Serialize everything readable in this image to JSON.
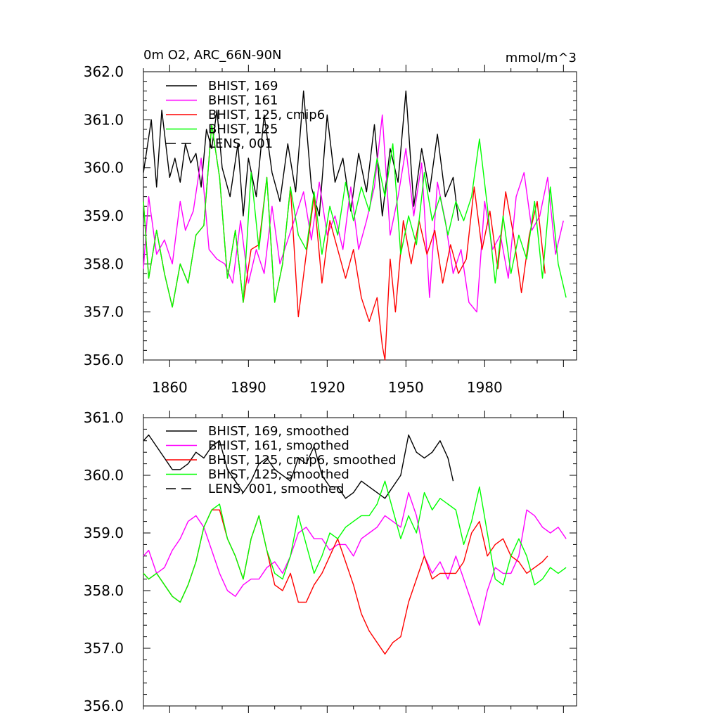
{
  "chart_data": [
    {
      "type": "line",
      "title": "0m O2, ARC_66N-90N",
      "units": "mmol/m^3",
      "xlabel": "",
      "ylabel": "",
      "xlim": [
        1850,
        2015
      ],
      "ylim": [
        356.0,
        362.0
      ],
      "xticks": [
        1860,
        1890,
        1920,
        1950,
        1980
      ],
      "xtick_labels": [
        "1860",
        "1890",
        "1920",
        "1950",
        "1980"
      ],
      "yticks": [
        356.0,
        357.0,
        358.0,
        359.0,
        360.0,
        361.0,
        362.0
      ],
      "ytick_labels": [
        "356.0",
        "357.0",
        "358.0",
        "359.0",
        "360.0",
        "361.0",
        "362.0"
      ],
      "legend": "top-left",
      "series": [
        {
          "name": "BHIST, 169",
          "label": "BHIST, 169",
          "color": "#000000",
          "dash": "solid",
          "x": [
            1850,
            1853,
            1855,
            1857,
            1860,
            1862,
            1864,
            1866,
            1868,
            1870,
            1872,
            1874,
            1876,
            1878,
            1880,
            1883,
            1886,
            1888,
            1890,
            1893,
            1896,
            1899,
            1902,
            1905,
            1908,
            1911,
            1914,
            1917,
            1920,
            1923,
            1926,
            1929,
            1932,
            1935,
            1938,
            1941,
            1944,
            1947,
            1950,
            1953,
            1956,
            1959,
            1962,
            1965,
            1968,
            1970
          ],
          "values": [
            359.9,
            361.0,
            359.6,
            361.2,
            359.8,
            360.2,
            359.7,
            360.5,
            360.1,
            360.3,
            359.6,
            360.8,
            360.4,
            361.2,
            360.0,
            359.4,
            360.5,
            359.0,
            360.2,
            359.4,
            361.1,
            359.9,
            359.3,
            360.5,
            359.5,
            361.6,
            359.6,
            359.0,
            361.1,
            359.7,
            360.2,
            359.1,
            360.3,
            359.5,
            360.9,
            359.0,
            360.4,
            359.7,
            361.6,
            359.2,
            360.4,
            359.5,
            360.7,
            359.4,
            359.8,
            358.9
          ]
        },
        {
          "name": "BHIST, 161",
          "label": "BHIST, 161",
          "color": "#ff00ff",
          "dash": "solid",
          "x": [
            1850,
            1852,
            1855,
            1858,
            1861,
            1864,
            1866,
            1869,
            1872,
            1875,
            1878,
            1881,
            1884,
            1887,
            1890,
            1893,
            1896,
            1899,
            1902,
            1905,
            1908,
            1911,
            1914,
            1917,
            1920,
            1923,
            1926,
            1929,
            1932,
            1935,
            1938,
            1941,
            1944,
            1947,
            1950,
            1953,
            1956,
            1959,
            1962,
            1965,
            1968,
            1971,
            1974,
            1977,
            1980,
            1983,
            1986,
            1989,
            1992,
            1995,
            1998,
            2001,
            2004,
            2007,
            2010
          ],
          "values": [
            357.9,
            359.4,
            358.2,
            358.5,
            358.0,
            359.3,
            358.7,
            359.1,
            360.2,
            358.3,
            358.1,
            358.0,
            357.6,
            358.9,
            357.6,
            358.3,
            357.8,
            359.2,
            358.0,
            358.5,
            359.0,
            359.5,
            358.5,
            359.7,
            358.6,
            359.0,
            358.3,
            359.6,
            358.3,
            358.9,
            359.6,
            361.1,
            358.6,
            359.4,
            360.4,
            359.0,
            360.1,
            357.3,
            359.7,
            358.9,
            357.8,
            358.3,
            357.2,
            357.0,
            359.3,
            358.3,
            358.6,
            357.7,
            359.4,
            359.9,
            358.7,
            359.0,
            359.8,
            358.2,
            358.9
          ]
        },
        {
          "name": "BHIST, 125, cmip6",
          "label": "BHIST, 125, cmip6",
          "color": "#ff0000",
          "dash": "solid",
          "x": [
            1850,
            1852,
            1855,
            1858,
            1861,
            1864,
            1867,
            1870,
            1873,
            1876,
            1879,
            1882,
            1885,
            1888,
            1891,
            1894,
            1897,
            1900,
            1903,
            1906,
            1909,
            1912,
            1915,
            1918,
            1921,
            1924,
            1927,
            1930,
            1933,
            1936,
            1939,
            1941,
            1942,
            1944,
            1946,
            1949,
            1952,
            1955,
            1958,
            1961,
            1964,
            1967,
            1970,
            1973,
            1976,
            1979,
            1982,
            1985,
            1988,
            1991,
            1994,
            1997,
            2000,
            2003
          ],
          "values": [
            359.3,
            357.7,
            358.7,
            357.8,
            357.1,
            358.0,
            357.6,
            358.6,
            358.8,
            360.9,
            359.8,
            357.7,
            358.7,
            357.2,
            358.3,
            358.4,
            359.8,
            357.2,
            358.0,
            359.6,
            356.9,
            358.2,
            359.4,
            357.6,
            358.9,
            358.3,
            357.7,
            358.3,
            357.3,
            356.8,
            357.3,
            356.3,
            356.0,
            358.1,
            357.0,
            358.9,
            358.0,
            358.9,
            358.2,
            358.7,
            357.6,
            358.4,
            357.8,
            358.1,
            359.6,
            358.3,
            359.1,
            357.9,
            359.5,
            358.6,
            357.4,
            358.6,
            359.3,
            357.8
          ]
        },
        {
          "name": "BHIST, 125",
          "label": "BHIST, 125",
          "color": "#00ff00",
          "dash": "solid",
          "x": [
            1850,
            1852,
            1855,
            1858,
            1861,
            1864,
            1867,
            1870,
            1873,
            1876,
            1879,
            1882,
            1885,
            1888,
            1891,
            1894,
            1897,
            1900,
            1903,
            1906,
            1909,
            1912,
            1915,
            1918,
            1921,
            1924,
            1927,
            1930,
            1933,
            1936,
            1939,
            1942,
            1945,
            1948,
            1951,
            1954,
            1957,
            1960,
            1963,
            1966,
            1969,
            1972,
            1975,
            1978,
            1981,
            1984,
            1987,
            1990,
            1993,
            1996,
            1999,
            2002,
            2005,
            2008,
            2011
          ],
          "values": [
            359.3,
            357.7,
            358.7,
            357.8,
            357.1,
            358.0,
            357.6,
            358.6,
            358.8,
            360.9,
            359.8,
            357.7,
            358.7,
            357.2,
            359.9,
            358.3,
            359.8,
            357.2,
            358.0,
            359.6,
            358.6,
            358.3,
            359.5,
            358.2,
            359.2,
            358.6,
            359.7,
            358.9,
            359.6,
            359.1,
            360.2,
            359.4,
            360.5,
            358.2,
            359.0,
            358.4,
            359.9,
            358.9,
            359.4,
            358.6,
            359.3,
            358.9,
            359.4,
            360.6,
            359.2,
            357.6,
            359.0,
            357.8,
            358.6,
            358.1,
            359.3,
            357.7,
            359.6,
            358.0,
            357.3
          ]
        },
        {
          "name": "LENS, 001",
          "label": "LENS, 001",
          "color": "#000000",
          "dash": "dashed",
          "x": [],
          "values": []
        }
      ]
    },
    {
      "type": "line",
      "title": "",
      "xlabel": "",
      "ylabel": "",
      "xlim": [
        1850,
        2015
      ],
      "ylim": [
        356.0,
        361.0
      ],
      "xticks": [
        1860,
        1890,
        1920,
        1950,
        1980
      ],
      "yticks": [
        356.0,
        357.0,
        358.0,
        359.0,
        360.0,
        361.0
      ],
      "ytick_labels": [
        "356.0",
        "357.0",
        "358.0",
        "359.0",
        "360.0",
        "361.0"
      ],
      "legend": "top-left",
      "series": [
        {
          "name": "BHIST, 169, smoothed",
          "label": "BHIST, 169, smoothed",
          "color": "#000000",
          "dash": "solid",
          "x": [
            1850,
            1852,
            1855,
            1858,
            1861,
            1864,
            1867,
            1870,
            1873,
            1876,
            1879,
            1882,
            1885,
            1888,
            1891,
            1894,
            1897,
            1900,
            1903,
            1906,
            1909,
            1912,
            1915,
            1918,
            1921,
            1924,
            1927,
            1930,
            1933,
            1936,
            1939,
            1942,
            1945,
            1948,
            1951,
            1954,
            1957,
            1960,
            1963,
            1966,
            1968
          ],
          "values": [
            360.6,
            360.7,
            360.5,
            360.3,
            360.1,
            360.1,
            360.2,
            360.4,
            360.3,
            360.5,
            360.6,
            360.1,
            359.9,
            359.7,
            359.9,
            360.2,
            360.3,
            360.1,
            360.0,
            359.9,
            360.3,
            360.2,
            360.5,
            360.0,
            359.8,
            359.8,
            359.6,
            359.7,
            359.9,
            359.8,
            359.7,
            359.6,
            359.8,
            360.0,
            360.7,
            360.4,
            360.3,
            360.4,
            360.6,
            360.3,
            359.9
          ]
        },
        {
          "name": "BHIST, 161, smoothed",
          "label": "BHIST, 161, smoothed",
          "color": "#ff00ff",
          "dash": "solid",
          "x": [
            1850,
            1852,
            1855,
            1858,
            1861,
            1864,
            1867,
            1870,
            1873,
            1876,
            1879,
            1882,
            1885,
            1888,
            1891,
            1894,
            1897,
            1900,
            1903,
            1906,
            1909,
            1912,
            1915,
            1918,
            1921,
            1924,
            1927,
            1930,
            1933,
            1936,
            1939,
            1942,
            1945,
            1948,
            1951,
            1954,
            1957,
            1960,
            1963,
            1966,
            1969,
            1972,
            1975,
            1978,
            1981,
            1984,
            1987,
            1990,
            1993,
            1996,
            1999,
            2002,
            2005,
            2008,
            2011
          ],
          "values": [
            358.6,
            358.7,
            358.3,
            358.4,
            358.7,
            358.9,
            359.2,
            359.3,
            359.1,
            358.7,
            358.3,
            358.0,
            357.9,
            358.1,
            358.2,
            358.2,
            358.4,
            358.5,
            358.3,
            358.6,
            359.0,
            359.1,
            358.9,
            358.9,
            358.7,
            358.8,
            358.8,
            358.6,
            358.9,
            359.0,
            359.1,
            359.3,
            359.2,
            359.1,
            359.7,
            359.3,
            358.6,
            358.3,
            358.5,
            358.2,
            358.6,
            358.2,
            357.8,
            357.4,
            358.0,
            358.4,
            358.3,
            358.3,
            358.6,
            359.4,
            359.3,
            359.1,
            359.0,
            359.1,
            358.9
          ]
        },
        {
          "name": "BHIST, 125, cmip6, smoothed",
          "label": "BHIST, 125, cmip6, smoothed",
          "color": "#ff0000",
          "dash": "solid",
          "x": [
            1850,
            1852,
            1855,
            1858,
            1861,
            1864,
            1867,
            1870,
            1873,
            1876,
            1879,
            1882,
            1885,
            1888,
            1891,
            1894,
            1897,
            1900,
            1903,
            1906,
            1909,
            1912,
            1915,
            1918,
            1921,
            1924,
            1927,
            1930,
            1933,
            1936,
            1939,
            1942,
            1945,
            1948,
            1951,
            1954,
            1957,
            1960,
            1963,
            1966,
            1969,
            1972,
            1975,
            1978,
            1981,
            1984,
            1987,
            1990,
            1993,
            1996,
            1999,
            2002,
            2004
          ],
          "values": [
            358.3,
            358.2,
            358.3,
            358.1,
            357.9,
            357.8,
            358.1,
            358.5,
            359.1,
            359.4,
            359.4,
            358.9,
            358.6,
            358.2,
            358.9,
            359.3,
            358.7,
            358.1,
            358.0,
            358.3,
            357.8,
            357.8,
            358.1,
            358.3,
            358.6,
            358.9,
            358.5,
            358.1,
            357.6,
            357.3,
            357.1,
            356.9,
            357.1,
            357.2,
            357.8,
            358.2,
            358.6,
            358.2,
            358.3,
            358.3,
            358.3,
            358.5,
            359.0,
            359.2,
            358.6,
            358.8,
            358.9,
            358.6,
            358.5,
            358.3,
            358.4,
            358.5,
            358.6
          ]
        },
        {
          "name": "BHIST, 125, smoothed",
          "label": "BHIST, 125, smoothed",
          "color": "#00ff00",
          "dash": "solid",
          "x": [
            1850,
            1852,
            1855,
            1858,
            1861,
            1864,
            1867,
            1870,
            1873,
            1876,
            1879,
            1882,
            1885,
            1888,
            1891,
            1894,
            1897,
            1900,
            1903,
            1906,
            1909,
            1912,
            1915,
            1918,
            1921,
            1924,
            1927,
            1930,
            1933,
            1936,
            1939,
            1942,
            1945,
            1948,
            1951,
            1954,
            1957,
            1960,
            1963,
            1966,
            1969,
            1972,
            1975,
            1978,
            1981,
            1984,
            1987,
            1990,
            1993,
            1996,
            1999,
            2002,
            2005,
            2008,
            2011
          ],
          "values": [
            358.3,
            358.2,
            358.3,
            358.1,
            357.9,
            357.8,
            358.1,
            358.5,
            359.1,
            359.4,
            359.5,
            358.9,
            358.6,
            358.2,
            358.9,
            359.3,
            358.7,
            358.3,
            358.2,
            358.6,
            359.3,
            358.8,
            358.3,
            358.6,
            359.0,
            358.9,
            359.1,
            359.2,
            359.3,
            359.3,
            359.5,
            359.9,
            359.4,
            358.9,
            359.3,
            359.0,
            359.7,
            359.4,
            359.6,
            359.5,
            359.4,
            358.8,
            359.2,
            359.8,
            359.0,
            358.2,
            358.1,
            358.6,
            358.9,
            358.6,
            358.1,
            358.2,
            358.4,
            358.3,
            358.4
          ]
        },
        {
          "name": "LENS, 001, smoothed",
          "label": "LENS, 001, smoothed",
          "color": "#000000",
          "dash": "dashed",
          "x": [],
          "values": []
        }
      ]
    }
  ]
}
